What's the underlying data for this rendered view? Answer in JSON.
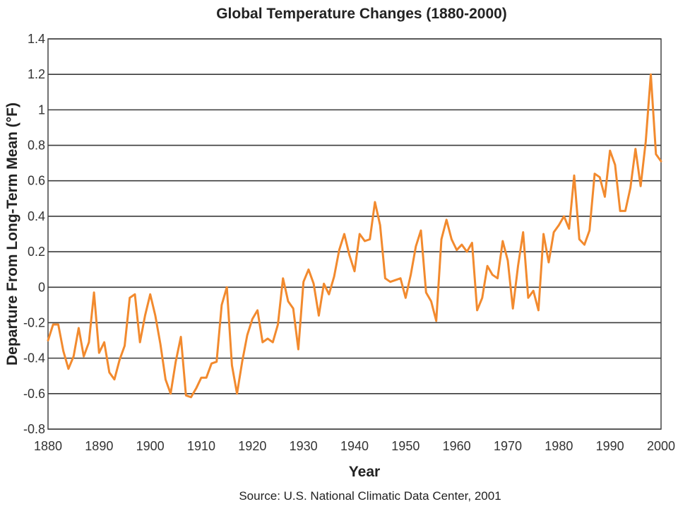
{
  "chart_data": {
    "type": "line",
    "title": "Global Temperature Changes (1880-2000)",
    "xlabel": "Year",
    "ylabel": "Departure From Long-Term Mean (°F)",
    "source": "Source: U.S. National Climatic Data Center, 2001",
    "xlim": [
      1880,
      2000
    ],
    "ylim": [
      -0.8,
      1.4
    ],
    "x_ticks": [
      1880,
      1890,
      1900,
      1910,
      1920,
      1930,
      1940,
      1950,
      1960,
      1970,
      1980,
      1990,
      2000
    ],
    "y_ticks": [
      -0.8,
      -0.6,
      -0.4,
      -0.2,
      0,
      0.2,
      0.4,
      0.6,
      0.8,
      1,
      1.2,
      1.4
    ],
    "x_tick_labels": [
      "1880",
      "1890",
      "1900",
      "1910",
      "1920",
      "1930",
      "1940",
      "1950",
      "1960",
      "1970",
      "1980",
      "1990",
      "2000"
    ],
    "y_tick_labels": [
      "-0.8",
      "-0.6",
      "-0.4",
      "-0.2",
      "0",
      "0.2",
      "0.4",
      "0.6",
      "0.8",
      "1",
      "1.2",
      "1.4"
    ],
    "grid": true,
    "line_color": "#f28a2e",
    "series": [
      {
        "x": [
          1880,
          1881,
          1882,
          1883,
          1884,
          1885,
          1886,
          1887,
          1888,
          1889,
          1890,
          1891,
          1892,
          1893,
          1894,
          1895,
          1896,
          1897,
          1898,
          1899,
          1900,
          1901,
          1902,
          1903,
          1904,
          1905,
          1906,
          1907,
          1908,
          1909,
          1910,
          1911,
          1912,
          1913,
          1914,
          1915,
          1916,
          1917,
          1918,
          1919,
          1920,
          1921,
          1922,
          1923,
          1924,
          1925,
          1926,
          1927,
          1928,
          1929,
          1930,
          1931,
          1932,
          1933,
          1934,
          1935,
          1936,
          1937,
          1938,
          1939,
          1940,
          1941,
          1942,
          1943,
          1944,
          1945,
          1946,
          1947,
          1948,
          1949,
          1950,
          1951,
          1952,
          1953,
          1954,
          1955,
          1956,
          1957,
          1958,
          1959,
          1960,
          1961,
          1962,
          1963,
          1964,
          1965,
          1966,
          1967,
          1968,
          1969,
          1970,
          1971,
          1972,
          1973,
          1974,
          1975,
          1976,
          1977,
          1978,
          1979,
          1980,
          1981,
          1982,
          1983,
          1984,
          1985,
          1986,
          1987,
          1988,
          1989,
          1990,
          1991,
          1992,
          1993,
          1994,
          1995,
          1996,
          1997,
          1998,
          1999,
          2000
        ],
        "values": [
          -0.3,
          -0.21,
          -0.21,
          -0.36,
          -0.46,
          -0.39,
          -0.23,
          -0.39,
          -0.31,
          -0.03,
          -0.37,
          -0.31,
          -0.48,
          -0.52,
          -0.41,
          -0.33,
          -0.06,
          -0.04,
          -0.31,
          -0.16,
          -0.04,
          -0.16,
          -0.32,
          -0.52,
          -0.6,
          -0.42,
          -0.28,
          -0.61,
          -0.62,
          -0.57,
          -0.51,
          -0.51,
          -0.43,
          -0.42,
          -0.1,
          0.0,
          -0.44,
          -0.6,
          -0.42,
          -0.27,
          -0.18,
          -0.13,
          -0.31,
          -0.29,
          -0.31,
          -0.21,
          0.05,
          -0.08,
          -0.12,
          -0.35,
          0.03,
          0.1,
          0.02,
          -0.16,
          0.02,
          -0.04,
          0.06,
          0.21,
          0.3,
          0.18,
          0.09,
          0.3,
          0.26,
          0.27,
          0.48,
          0.35,
          0.05,
          0.03,
          0.04,
          0.05,
          -0.06,
          0.07,
          0.23,
          0.32,
          -0.03,
          -0.08,
          -0.19,
          0.27,
          0.38,
          0.27,
          0.21,
          0.24,
          0.2,
          0.25,
          -0.13,
          -0.06,
          0.12,
          0.07,
          0.05,
          0.26,
          0.15,
          -0.12,
          0.12,
          0.31,
          -0.06,
          -0.02,
          -0.13,
          0.3,
          0.14,
          0.31,
          0.35,
          0.4,
          0.33,
          0.63,
          0.27,
          0.24,
          0.32,
          0.64,
          0.62,
          0.51,
          0.77,
          0.69,
          0.43,
          0.43,
          0.56,
          0.78,
          0.57,
          0.82,
          1.2,
          0.75,
          0.71
        ]
      }
    ]
  }
}
